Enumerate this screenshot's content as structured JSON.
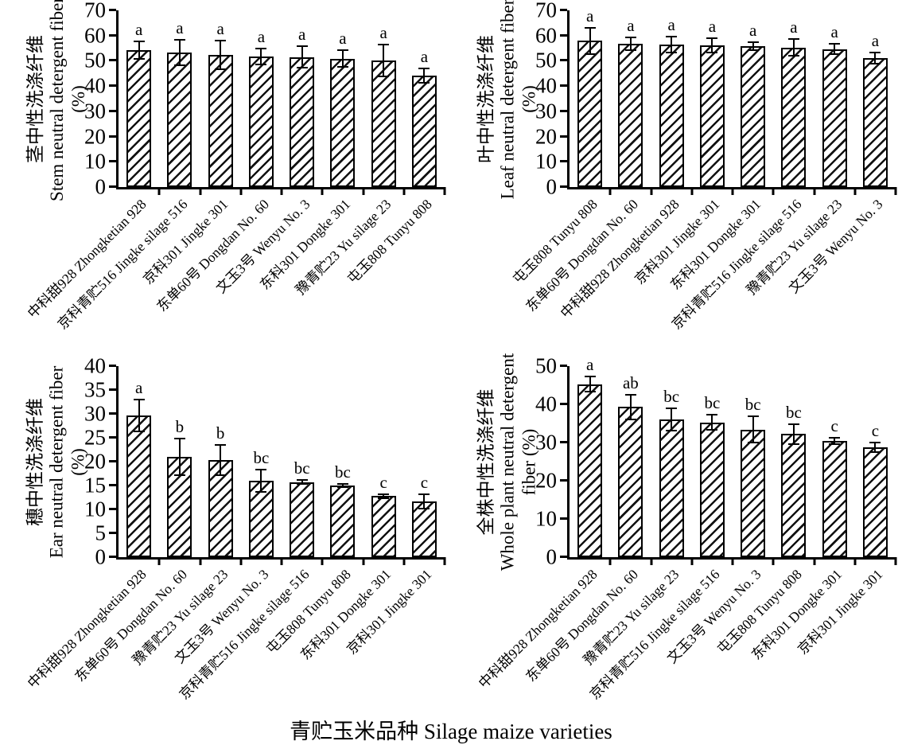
{
  "caption": "青贮玉米品种 Silage maize varieties",
  "chart_data": [
    {
      "key": "stem",
      "type": "bar",
      "title": "",
      "ylabel_cn": "茎中性洗涤纤维",
      "ylabel_en": "Stem neutral detergent fiber",
      "ylabel_unit": "(%)",
      "xlabel": "青贮玉米品种 Silage maize varieties",
      "ylim": [
        0,
        70
      ],
      "ytick_step": 10,
      "grid": false,
      "legend": "none",
      "bar_fill": "diagonal-hatch",
      "categories": [
        "中科甜928 Zhongketian 928",
        "京科青贮516 Jingke silage 516",
        "京科301 Jingke 301",
        "东单60号 Dongdan No. 60",
        "文玉3号 Wenyu No. 3",
        "东科301 Dongke 301",
        "豫青贮23 Yu silage 23",
        "屯玉808 Tunyu 808"
      ],
      "values": [
        54.2,
        53.4,
        52.4,
        51.8,
        51.5,
        50.9,
        50.2,
        44.1
      ],
      "errors": [
        3.4,
        5.0,
        5.6,
        3.1,
        4.2,
        3.3,
        6.4,
        2.8
      ],
      "sig_letters": [
        "a",
        "a",
        "a",
        "a",
        "a",
        "a",
        "a",
        "a"
      ]
    },
    {
      "key": "leaf",
      "type": "bar",
      "title": "",
      "ylabel_cn": "叶中性洗涤纤维",
      "ylabel_en": "Leaf neutral detergent fiber",
      "ylabel_unit": "(%)",
      "xlabel": "青贮玉米品种 Silage maize varieties",
      "ylim": [
        0,
        70
      ],
      "ytick_step": 10,
      "grid": false,
      "legend": "none",
      "bar_fill": "diagonal-hatch",
      "categories": [
        "屯玉808 Tunyu 808",
        "东单60号 Dongdan No. 60",
        "中科甜928 Zhongketian 928",
        "京科301 Jingke 301",
        "东科301 Dongke 301",
        "京科青贮516 Jingke silage 516",
        "豫青贮23 Yu silage 23",
        "文玉3号 Wenyu No. 3"
      ],
      "values": [
        58.0,
        56.8,
        56.5,
        56.2,
        55.7,
        55.2,
        54.7,
        51.1
      ],
      "errors": [
        5.2,
        2.6,
        3.2,
        2.9,
        1.6,
        3.3,
        2.1,
        2.2
      ],
      "sig_letters": [
        "a",
        "a",
        "a",
        "a",
        "a",
        "a",
        "a",
        "a"
      ]
    },
    {
      "key": "ear",
      "type": "bar",
      "title": "",
      "ylabel_cn": "穗中性洗涤纤维",
      "ylabel_en": "Ear neutral detergent fiber",
      "ylabel_unit": "(%)",
      "xlabel": "青贮玉米品种 Silage maize varieties",
      "ylim": [
        0,
        40
      ],
      "ytick_step": 5,
      "grid": false,
      "legend": "none",
      "bar_fill": "diagonal-hatch",
      "categories": [
        "中科甜928 Zhongketian 928",
        "东单60号 Dongdan No. 60",
        "豫青贮23 Yu silage 23",
        "文玉3号 Wenyu No. 3",
        "京科青贮516 Jingke silage 516",
        "屯玉808 Tunyu 808",
        "东科301 Dongke 301",
        "京科301 Jingke 301"
      ],
      "values": [
        29.7,
        21.0,
        20.3,
        16.0,
        15.7,
        15.0,
        12.8,
        11.7
      ],
      "errors": [
        3.3,
        3.8,
        3.2,
        2.3,
        0.4,
        0.3,
        0.4,
        1.5
      ],
      "sig_letters": [
        "a",
        "b",
        "b",
        "bc",
        "bc",
        "bc",
        "c",
        "c"
      ]
    },
    {
      "key": "whole",
      "type": "bar",
      "title": "",
      "ylabel_cn": "全株中性洗涤纤维",
      "ylabel_en": "Whole plant neutral detergent",
      "ylabel_unit": "fiber (%)",
      "xlabel": "青贮玉米品种 Silage maize varieties",
      "ylim": [
        0,
        50
      ],
      "ytick_step": 10,
      "grid": false,
      "legend": "none",
      "bar_fill": "diagonal-hatch",
      "categories": [
        "中科甜928 Zhongketian 928",
        "东单60号 Dongdan No. 60",
        "豫青贮23 Yu silage 23",
        "京科青贮516 Jingke silage 516",
        "文玉3号 Wenyu No. 3",
        "屯玉808 Tunyu 808",
        "东科301 Dongke 301",
        "京科301 Jingke 301"
      ],
      "values": [
        45.3,
        39.3,
        36.1,
        35.3,
        33.4,
        32.2,
        30.4,
        28.7
      ],
      "errors": [
        2.0,
        3.2,
        2.9,
        2.0,
        3.4,
        2.6,
        0.9,
        1.2
      ],
      "sig_letters": [
        "a",
        "ab",
        "bc",
        "bc",
        "bc",
        "bc",
        "c",
        "c"
      ]
    }
  ],
  "colors": {
    "foreground": "#000000",
    "background": "#ffffff"
  }
}
